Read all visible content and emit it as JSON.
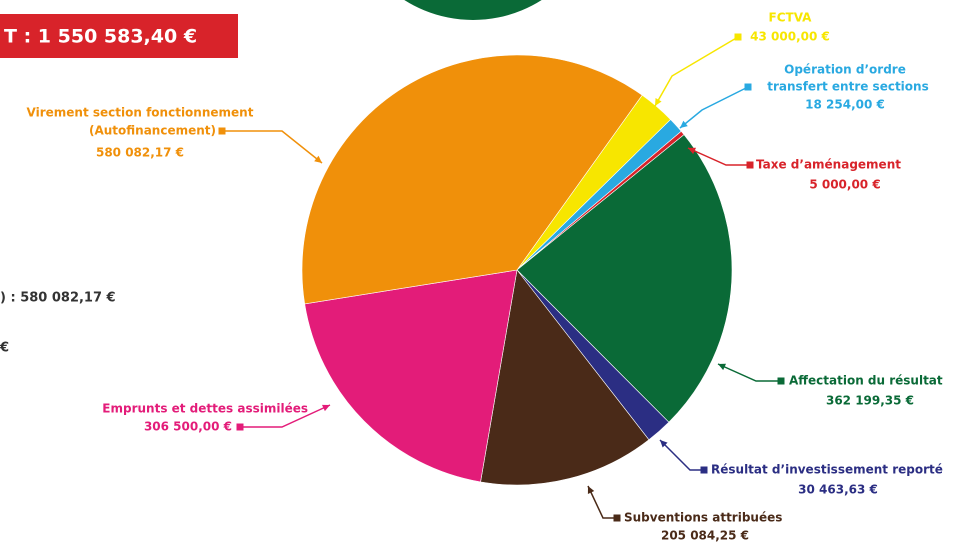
{
  "chart_data": {
    "type": "pie",
    "title": "T : 1 550 583,40 €",
    "side_texts": [
      ") : 580 082,17 €",
      "€"
    ],
    "categories": [
      [
        "FCTVA"
      ],
      [
        "Opération d’ordre",
        "transfert entre sections"
      ],
      [
        "Taxe d’aménagement"
      ],
      [
        "Affectation du résultat"
      ],
      [
        "Résultat d’investissement reporté"
      ],
      [
        "Subventions attribuées"
      ],
      [
        "Emprunts et dettes assimilées"
      ],
      [
        "Virement section fonctionnement",
        "(Autofinancement)"
      ]
    ],
    "values": [
      43000,
      18254,
      5000,
      362199.35,
      30463.63,
      205084.25,
      306500,
      580082.17
    ],
    "value_labels": [
      "43 000,00 €",
      "18 254,00 €",
      "5 000,00 €",
      "362 199,35 €",
      "30 463,63 €",
      "205 084,25 €",
      "306 500,00 €",
      "580 082,17 €"
    ],
    "colors": [
      "#f7e600",
      "#29a9e1",
      "#d8232a",
      "#0a6a37",
      "#2b2e83",
      "#4a2a18",
      "#e31c79",
      "#f0900a"
    ]
  }
}
